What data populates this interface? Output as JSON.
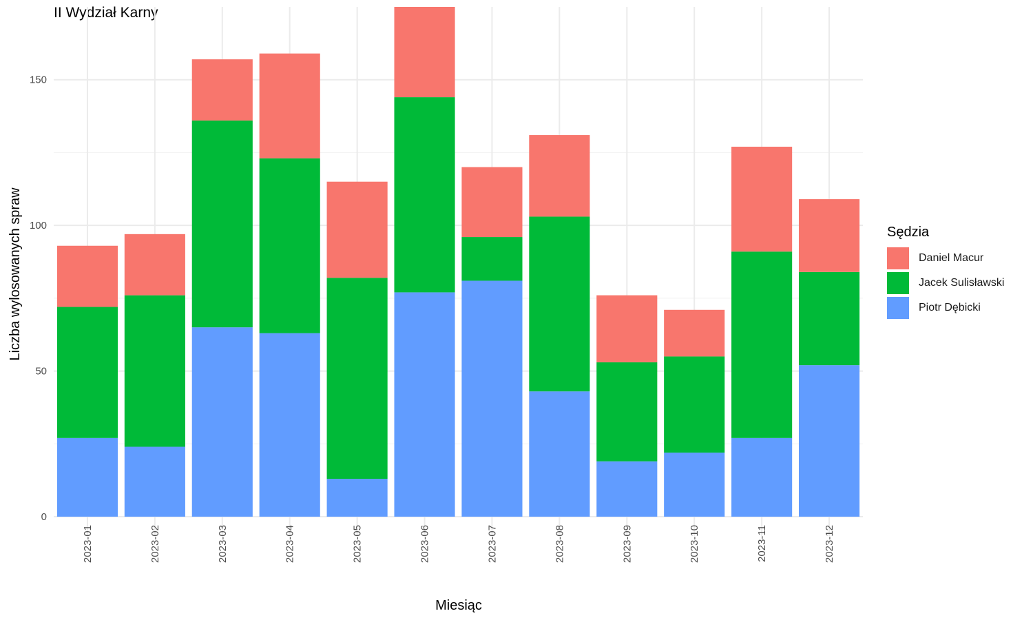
{
  "chart_data": {
    "type": "bar",
    "stacked": true,
    "title": "II Wydział Karny",
    "xlabel": "Miesiąc",
    "ylabel": "Liczba wylosowanych spraw",
    "ylim": [
      0,
      175
    ],
    "yticks": [
      0,
      50,
      100,
      150
    ],
    "grid": true,
    "legend_title": "Sędzia",
    "legend_position": "right",
    "categories": [
      "2023-01",
      "2023-02",
      "2023-03",
      "2023-04",
      "2023-05",
      "2023-06",
      "2023-07",
      "2023-08",
      "2023-09",
      "2023-10",
      "2023-11",
      "2023-12"
    ],
    "series": [
      {
        "name": "Daniel Macur",
        "color": "#F8766D",
        "values": [
          21,
          21,
          21,
          36,
          33,
          31,
          24,
          28,
          23,
          16,
          36,
          25
        ]
      },
      {
        "name": "Jacek Sulisławski",
        "color": "#00BA38",
        "values": [
          45,
          52,
          71,
          60,
          69,
          67,
          15,
          60,
          34,
          33,
          64,
          32
        ]
      },
      {
        "name": "Piotr Dębicki",
        "color": "#619CFF",
        "values": [
          27,
          24,
          65,
          63,
          13,
          77,
          81,
          43,
          19,
          22,
          27,
          52
        ]
      }
    ]
  }
}
